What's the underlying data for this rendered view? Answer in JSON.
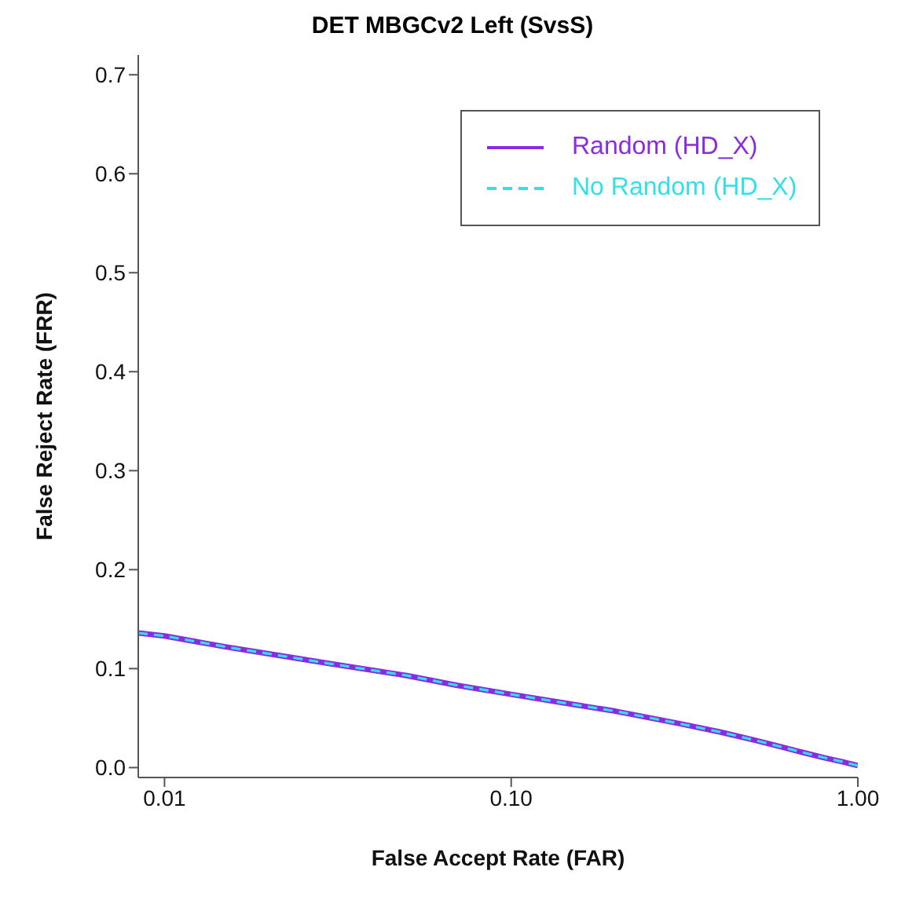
{
  "chart_data": {
    "type": "line",
    "title": "DET MBGCv2 Left (SvsS)",
    "xlabel": "False Accept Rate (FAR)",
    "ylabel": "False Reject Rate (FRR)",
    "x": [
      0.0084,
      0.01,
      0.015,
      0.02,
      0.03,
      0.05,
      0.07,
      0.1,
      0.15,
      0.2,
      0.3,
      0.4,
      0.5,
      0.6,
      0.7,
      0.8,
      0.9,
      1.0
    ],
    "series": [
      {
        "name": "Random (HD_X)",
        "color": "#8a2be2",
        "line_style": "solid",
        "values": [
          0.136,
          0.133,
          0.122,
          0.115,
          0.105,
          0.093,
          0.083,
          0.074,
          0.064,
          0.057,
          0.045,
          0.036,
          0.028,
          0.021,
          0.015,
          0.01,
          0.006,
          0.002
        ]
      },
      {
        "name": "No Random (HD_X)",
        "color": "#33e0e8",
        "line_style": "dashed",
        "values": [
          0.136,
          0.133,
          0.122,
          0.115,
          0.105,
          0.093,
          0.083,
          0.074,
          0.064,
          0.057,
          0.045,
          0.036,
          0.028,
          0.021,
          0.015,
          0.01,
          0.006,
          0.002
        ]
      }
    ],
    "log": "x",
    "xlim": [
      0.0084,
      1.0
    ],
    "xticks": [
      {
        "value": 0.01,
        "label": "0.01"
      },
      {
        "value": 0.1,
        "label": "0.10"
      },
      {
        "value": 1,
        "label": "1.00"
      }
    ],
    "ylim": [
      -0.01,
      0.72
    ],
    "yticks": [
      {
        "value": 0,
        "label": "0.0"
      },
      0.1,
      0.2,
      0.3,
      0.4,
      0.5,
      0.6,
      0.7
    ],
    "grid": false,
    "legend": "top right",
    "marker": "none"
  }
}
